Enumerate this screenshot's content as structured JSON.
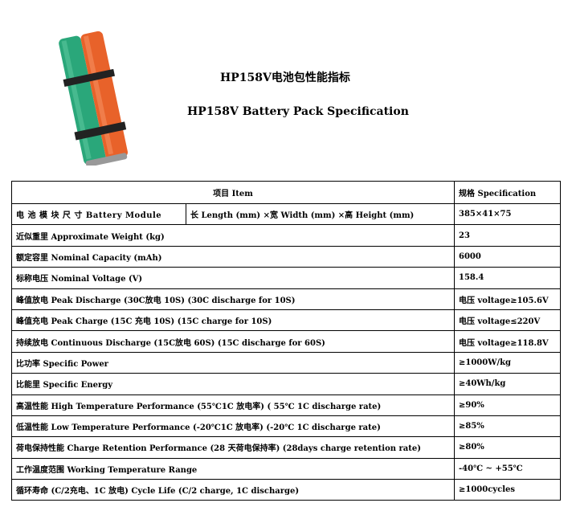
{
  "title_cn": "HP158V电池包性能指标",
  "title_en": "HP158V Battery Pack Specification",
  "header": {
    "item": "项目 Item",
    "spec": "规格 Specification"
  },
  "module_row": {
    "label": "电 池 模 块 尺 寸  Battery Module",
    "dims": "长 Length (mm) ×宽 Width (mm) ×高 Height (mm)",
    "value": "385×41×75"
  },
  "rows": [
    {
      "item": "近似重里 Approximate Weight (kg)",
      "value": "23"
    },
    {
      "item": "额定容里 Nominal Capacity (mAh)",
      "value": "6000"
    },
    {
      "item": "标称电压 Nominal Voltage (V)",
      "value": "158.4"
    },
    {
      "item": "峰值放电 Peak Discharge (30C放电 10S) (30C discharge for 10S)",
      "value": "电压 voltage≥105.6V"
    },
    {
      "item": "峰值充电 Peak Charge (15C 充电 10S)  (15C charge for 10S)",
      "value": "电压 voltage≤220V"
    },
    {
      "item": "持续放电 Continuous Discharge (15C放电 60S) (15C discharge for 60S)",
      "value": "电压 voltage≥118.8V"
    },
    {
      "item": "比功率 Specific Power",
      "value": "≥1000W/kg"
    },
    {
      "item": "比能里 Specific Energy",
      "value": "≥40Wh/kg"
    },
    {
      "item": "高温性能 High Temperature Performance (55℃1C 放电率) ( 55℃ 1C discharge rate)",
      "value": "≥90%"
    },
    {
      "item": "低温性能 Low Temperature Performance (-20℃1C 放电率)  (-20℃ 1C discharge rate)",
      "value": "≥85%"
    },
    {
      "item": "荷电保持性能 Charge Retention Performance (28 天荷电保持率) (28days charge retention rate)",
      "value": "≥80%"
    },
    {
      "item": "工作温度范围 Working Temperature Range",
      "value": "-40℃ ~ +55℃"
    },
    {
      "item": "循环寿命 (C/2充电、1C 放电)  Cycle Life (C/2 charge, 1C discharge)",
      "value": "≥1000cycles"
    }
  ],
  "colors": {
    "green_cell": "#2aa77a",
    "orange_cell": "#e8622a"
  }
}
